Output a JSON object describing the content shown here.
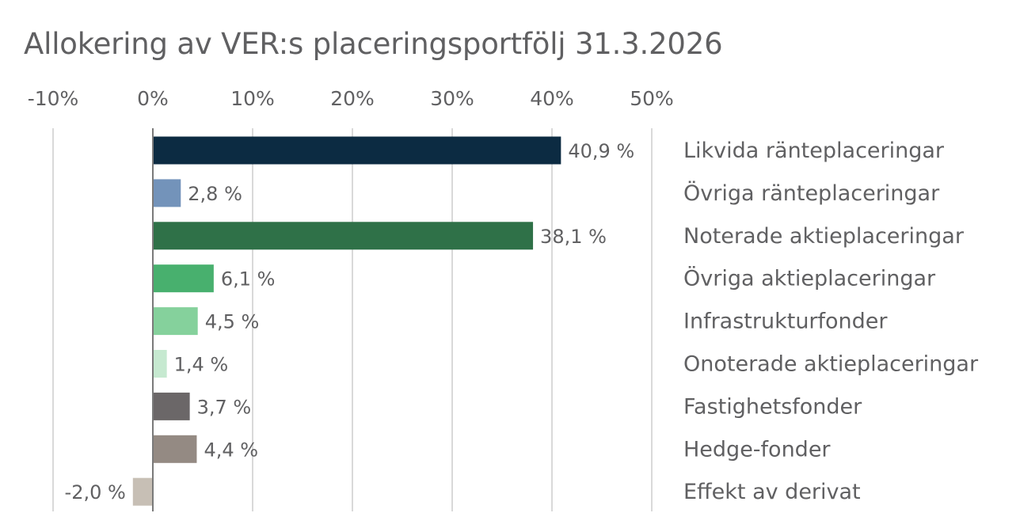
{
  "chart_data": {
    "type": "bar",
    "orientation": "horizontal",
    "title": "Allokering av VER:s placeringsportfölj 31.3.2026",
    "categories": [
      "Likvida ränteplaceringar",
      "Övriga ränteplaceringar",
      "Noterade aktieplaceringar",
      "Övriga aktieplaceringar",
      "Infrastrukturfonder",
      "Onoterade aktieplaceringar",
      "Fastighetsfonder",
      "Hedge-fonder",
      "Effekt av derivat"
    ],
    "values": [
      40.9,
      2.8,
      38.1,
      6.1,
      4.5,
      1.4,
      3.7,
      4.4,
      -2.0
    ],
    "value_labels": [
      "40,9 %",
      "2,8 %",
      "38,1 %",
      "6,1 %",
      "4,5 %",
      "1,4 %",
      "3,7 %",
      "4,4 %",
      "-2,0 %"
    ],
    "colors": [
      "#0c2b42",
      "#7393ba",
      "#2f7148",
      "#48b06e",
      "#85d19c",
      "#c6e9d0",
      "#6b6768",
      "#948a83",
      "#c7bfb5"
    ],
    "xlim": [
      -10,
      50
    ],
    "xticks": [
      -10,
      0,
      10,
      20,
      30,
      40,
      50
    ],
    "xtick_labels": [
      "-10%",
      "0%",
      "10%",
      "20%",
      "30%",
      "40%",
      "50%"
    ],
    "axis_position": "top",
    "legend_position": "right",
    "grid": true,
    "grid_color": "#d9d9d9",
    "zero_line_color": "#7a7a7a",
    "xlabel": "",
    "ylabel": ""
  }
}
